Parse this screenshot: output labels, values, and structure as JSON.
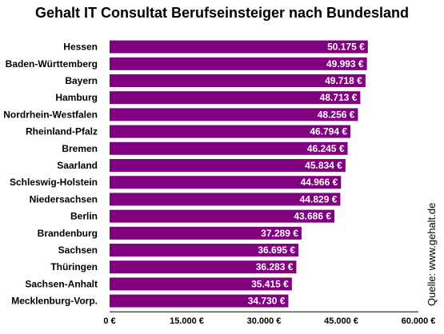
{
  "chart_data": {
    "type": "bar",
    "orientation": "horizontal",
    "title": "Gehalt IT Consultat Berufseinsteiger nach Bundesland",
    "categories": [
      "Hessen",
      "Baden-Württemberg",
      "Bayern",
      "Hamburg",
      "Nordrhein-Westfalen",
      "Rheinland-Pfalz",
      "Bremen",
      "Saarland",
      "Schleswig-Holstein",
      "Niedersachsen",
      "Berlin",
      "Brandenburg",
      "Sachsen",
      "Thüringen",
      "Sachsen-Anhalt",
      "Mecklenburg-Vorp."
    ],
    "values": [
      50175,
      49993,
      49718,
      48713,
      48256,
      46794,
      46245,
      45834,
      44966,
      44829,
      43686,
      37289,
      36695,
      36283,
      35415,
      34730
    ],
    "value_labels": [
      "50.175 €",
      "49.993 €",
      "49.718 €",
      "48.713 €",
      "48.256 €",
      "46.794 €",
      "46.245 €",
      "45.834 €",
      "44.966 €",
      "44.829 €",
      "43.686 €",
      "37.289 €",
      "36.695 €",
      "36.283 €",
      "35.415 €",
      "34.730 €"
    ],
    "xlim": [
      0,
      60000
    ],
    "ticks": [
      0,
      15000,
      30000,
      45000,
      60000
    ],
    "tick_labels": [
      "0 €",
      "15.000 €",
      "30.000 €",
      "45.000 €",
      "60.000 €"
    ],
    "grid": false,
    "bar_color": "#800080",
    "source": "Quelle: www.gehalt.de"
  }
}
